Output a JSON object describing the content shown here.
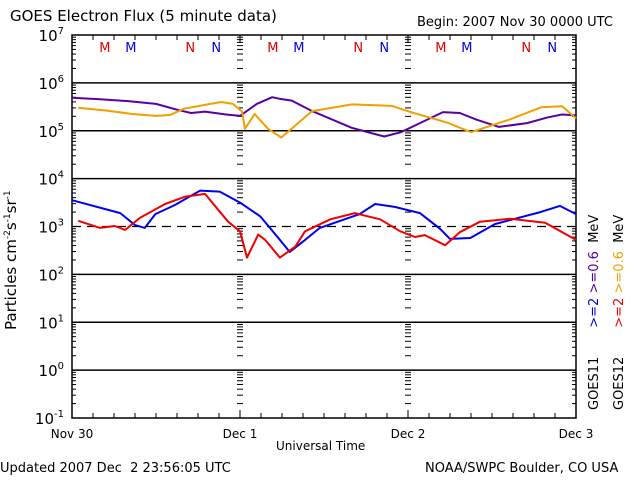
{
  "chart_data": {
    "type": "line",
    "title": "GOES Electron Flux (5 minute data)",
    "subtitle": "Begin: 2007 Nov 30 0000 UTC",
    "xlabel": "Universal Time",
    "ylabel": "Particles cm-2 s-1 sr-1",
    "ylabel_parts": {
      "base": "Particles cm",
      "e1": "-2",
      "s": "s",
      "e2": "-1",
      "sr": "sr",
      "e3": "-1"
    },
    "yscale": "log",
    "ylim_exp": [
      -1,
      7
    ],
    "xlim_hours": [
      0,
      72
    ],
    "y_tick_labels": [
      {
        "exp": 7,
        "base": "10",
        "sup": "7"
      },
      {
        "exp": 6,
        "base": "10",
        "sup": "6"
      },
      {
        "exp": 5,
        "base": "10",
        "sup": "5"
      },
      {
        "exp": 4,
        "base": "10",
        "sup": "4"
      },
      {
        "exp": 3,
        "base": "10",
        "sup": "3"
      },
      {
        "exp": 2,
        "base": "10",
        "sup": "2"
      },
      {
        "exp": 1,
        "base": "10",
        "sup": "1"
      },
      {
        "exp": 0,
        "base": "10",
        "sup": "0"
      },
      {
        "exp": -1,
        "base": "10",
        "sup": "-1"
      }
    ],
    "x_tick_labels": [
      {
        "hour": 0,
        "label": "Nov 30"
      },
      {
        "hour": 24,
        "label": "Dec 1"
      },
      {
        "hour": 48,
        "label": "Dec 2"
      },
      {
        "hour": 72,
        "label": "Dec 3"
      }
    ],
    "solid_gridlines_exp": [
      6,
      5,
      4,
      2,
      1,
      0
    ],
    "dashed_threshold_exp": 3,
    "local_time_markers": [
      {
        "hour": 4.7,
        "label": "M",
        "color": "#e00000"
      },
      {
        "hour": 8.4,
        "label": "M",
        "color": "#0000e0"
      },
      {
        "hour": 16.9,
        "label": "N",
        "color": "#e00000"
      },
      {
        "hour": 20.6,
        "label": "N",
        "color": "#0000e0"
      },
      {
        "hour": 28.7,
        "label": "M",
        "color": "#e00000"
      },
      {
        "hour": 32.4,
        "label": "M",
        "color": "#0000e0"
      },
      {
        "hour": 40.9,
        "label": "N",
        "color": "#e00000"
      },
      {
        "hour": 44.6,
        "label": "N",
        "color": "#0000e0"
      },
      {
        "hour": 52.7,
        "label": "M",
        "color": "#e00000"
      },
      {
        "hour": 56.4,
        "label": "M",
        "color": "#0000e0"
      },
      {
        "hour": 64.9,
        "label": "N",
        "color": "#e00000"
      },
      {
        "hour": 68.6,
        "label": "N",
        "color": "#0000e0"
      }
    ],
    "series": [
      {
        "name": "GOES11 >=0.6 MeV",
        "color": "#5a00a0",
        "hours": [
          0,
          4,
          8,
          12,
          15,
          17,
          19,
          22,
          24,
          26.4,
          28.6,
          29.6,
          31.4,
          34.3,
          40,
          44.6,
          47,
          50,
          53,
          55.4,
          57.8,
          61,
          65,
          68,
          70,
          72
        ],
        "log10_flux": [
          5.69,
          5.66,
          5.62,
          5.56,
          5.44,
          5.37,
          5.4,
          5.34,
          5.31,
          5.56,
          5.7,
          5.67,
          5.63,
          5.41,
          5.06,
          4.88,
          4.97,
          5.18,
          5.39,
          5.37,
          5.23,
          5.08,
          5.16,
          5.28,
          5.34,
          5.32
        ]
      },
      {
        "name": "GOES12 >=0.6 MeV",
        "color": "#f0a000",
        "hours": [
          0.9,
          5,
          8.6,
          12,
          14,
          16,
          19,
          21.3,
          23,
          24.3,
          24.7,
          26.1,
          28,
          29.9,
          34.3,
          40,
          45.7,
          48.6,
          53.6,
          57,
          62.6,
          67,
          70,
          72
        ],
        "log10_flux": [
          5.48,
          5.42,
          5.35,
          5.31,
          5.33,
          5.46,
          5.54,
          5.6,
          5.56,
          5.4,
          5.04,
          5.35,
          5.04,
          4.86,
          5.41,
          5.55,
          5.52,
          5.38,
          5.17,
          4.97,
          5.24,
          5.49,
          5.51,
          5.26
        ]
      },
      {
        "name": "GOES11 >=2 MeV",
        "color": "#0000f0",
        "hours": [
          0,
          6.9,
          9,
          10.4,
          11.9,
          14.7,
          18.3,
          21.1,
          24,
          26.9,
          29.7,
          31.1,
          33.3,
          35.4,
          41.1,
          43.3,
          46.1,
          49.7,
          52.6,
          54,
          56.9,
          60.4,
          66.9,
          69.7,
          72
        ],
        "log10_flux": [
          3.55,
          3.28,
          3.03,
          2.97,
          3.26,
          3.45,
          3.75,
          3.73,
          3.5,
          3.21,
          2.72,
          2.47,
          2.72,
          2.97,
          3.26,
          3.47,
          3.41,
          3.28,
          2.95,
          2.74,
          2.76,
          3.05,
          3.3,
          3.43,
          3.26
        ]
      },
      {
        "name": "GOES12 >=2 MeV",
        "color": "#f00000",
        "hours": [
          0.9,
          4,
          6.1,
          7.6,
          9.7,
          13.3,
          16.1,
          19,
          22.3,
          24,
          25,
          26.6,
          27.6,
          29.7,
          31.9,
          33.3,
          36.9,
          40.4,
          44,
          46.9,
          49,
          50.4,
          53.3,
          55.4,
          58.3,
          62.6,
          67.6,
          72
        ],
        "log10_flux": [
          3.12,
          2.97,
          3.01,
          2.93,
          3.18,
          3.47,
          3.62,
          3.68,
          3.1,
          2.9,
          2.35,
          2.83,
          2.72,
          2.35,
          2.58,
          2.9,
          3.15,
          3.28,
          3.15,
          2.9,
          2.78,
          2.82,
          2.61,
          2.88,
          3.1,
          3.16,
          3.08,
          2.72
        ]
      }
    ],
    "legend": [
      {
        "text": "GOES11",
        "color": "#000000"
      },
      {
        "text": ">=2",
        "color": "#0000f0"
      },
      {
        "text": ">=0.6",
        "color": "#5a00a0"
      },
      {
        "text": "MeV",
        "color": "#000000"
      },
      {
        "text": "GOES12",
        "color": "#000000"
      },
      {
        "text": ">=2",
        "color": "#f00000"
      },
      {
        "text": ">=0.6",
        "color": "#f0a000"
      },
      {
        "text": "MeV",
        "color": "#000000"
      }
    ],
    "legend_placement": "right"
  },
  "footer": {
    "updated": "Updated 2007 Dec  2 23:56:05 UTC",
    "credit": "NOAA/SWPC Boulder, CO USA"
  }
}
